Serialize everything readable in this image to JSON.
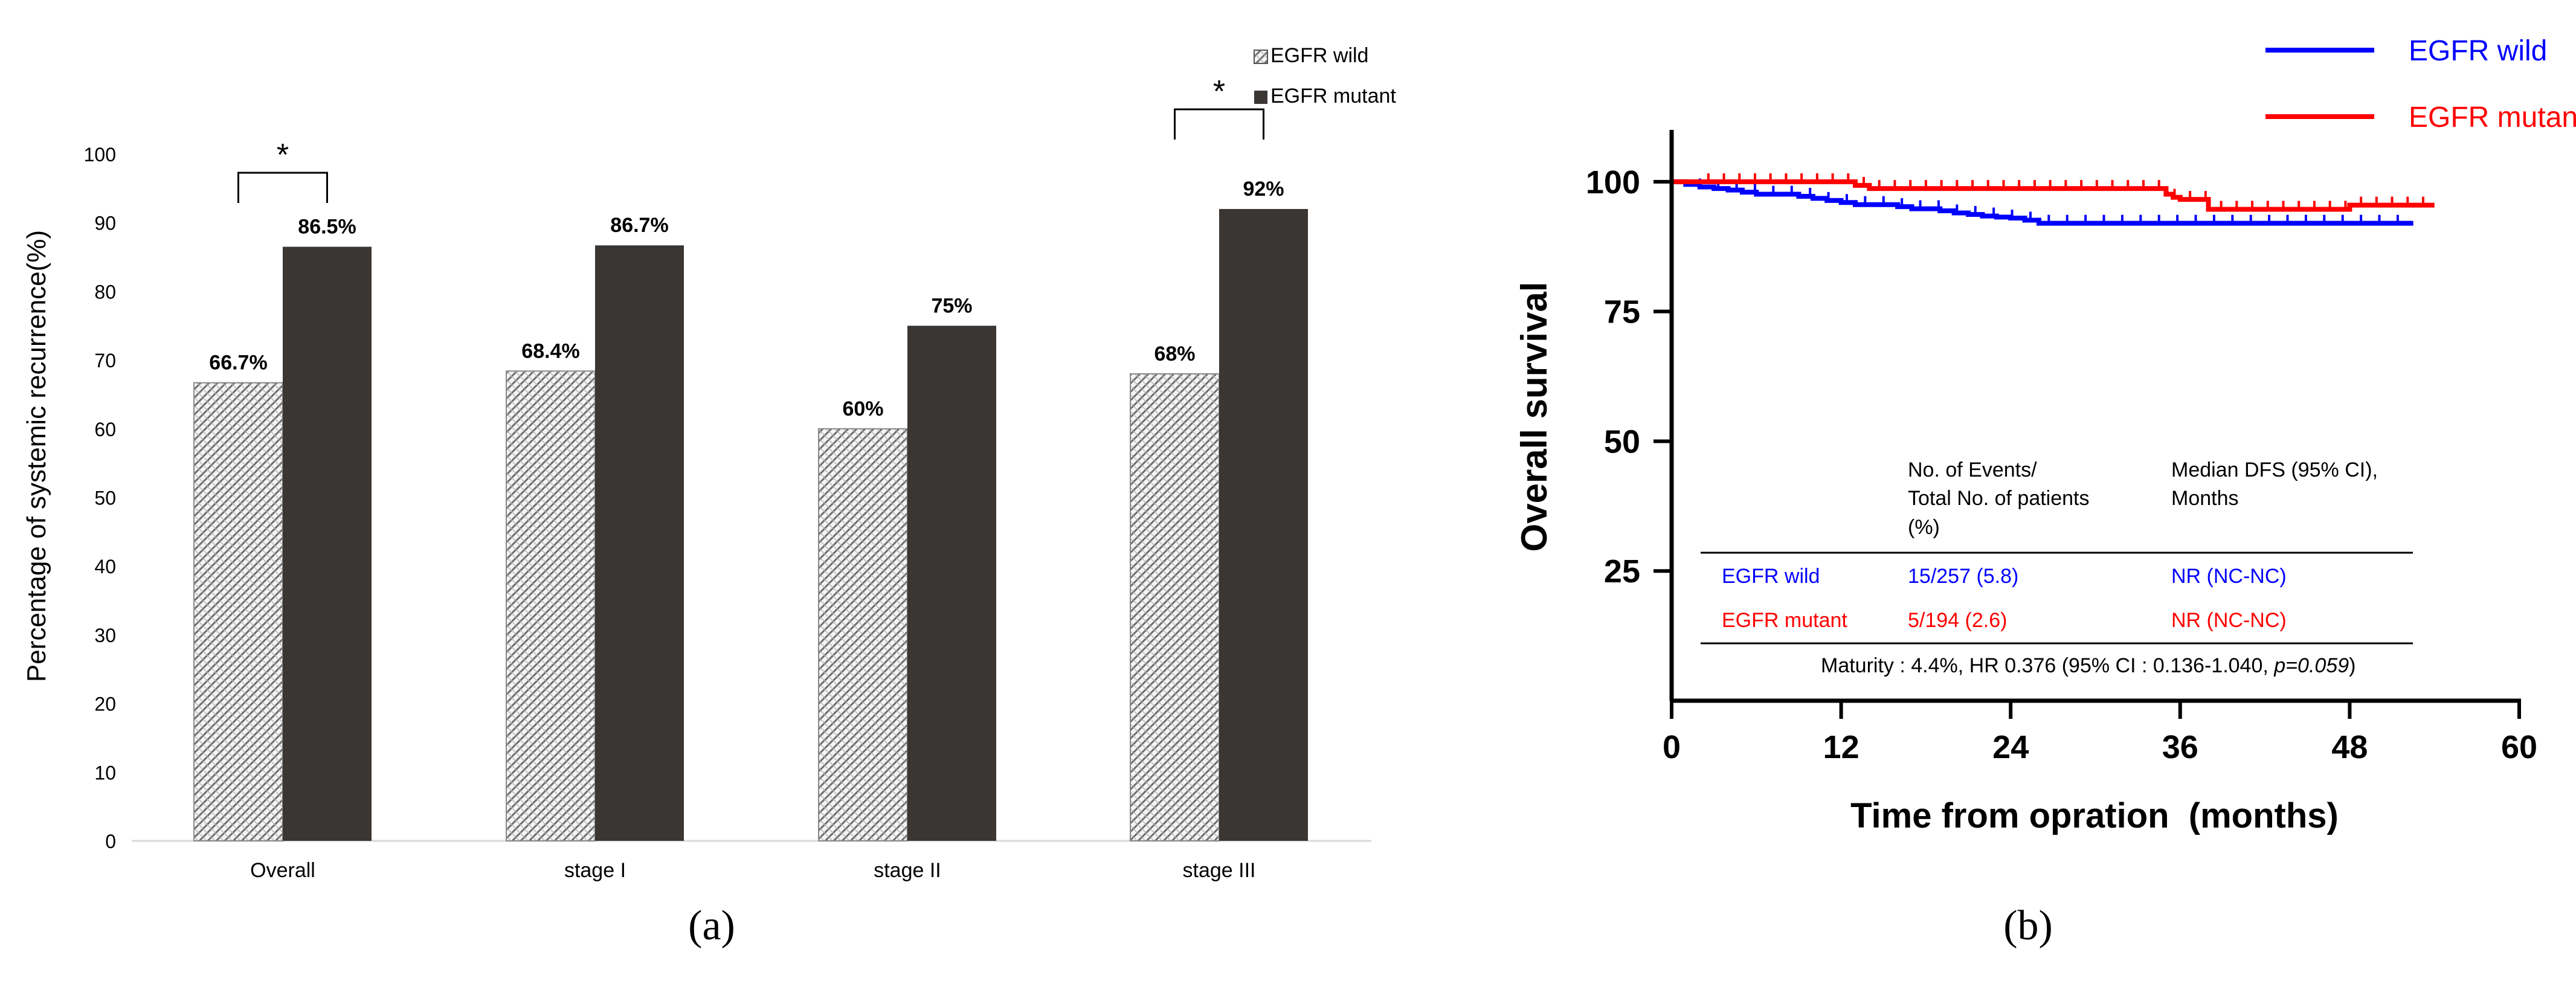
{
  "chart_data": [
    {
      "type": "bar",
      "title": "",
      "xlabel": "",
      "ylabel": "Percentage of systemic recurrence(%)",
      "ylim": [
        0,
        100
      ],
      "yticks": [
        0,
        10,
        20,
        30,
        40,
        50,
        60,
        70,
        80,
        90,
        100
      ],
      "categories": [
        "Overall",
        "stage I",
        "stage II",
        "stage III"
      ],
      "series": [
        {
          "name": "EGFR wild",
          "values": [
            66.7,
            68.4,
            60,
            68
          ],
          "labels": [
            "66.7%",
            "68.4%",
            "60%",
            "68%"
          ],
          "pattern": "hatched"
        },
        {
          "name": "EGFR mutant",
          "values": [
            86.5,
            86.7,
            75,
            92
          ],
          "labels": [
            "86.5%",
            "86.7%",
            "75%",
            "92%"
          ],
          "color": "#3a3634"
        }
      ],
      "legend": [
        "EGFR wild",
        "EGFR mutant"
      ],
      "legend_position": "top-right",
      "significance": [
        {
          "category": "Overall",
          "marker": "*"
        },
        {
          "category": "stage III",
          "marker": "*"
        }
      ],
      "panel_label": "(a)"
    },
    {
      "type": "line",
      "title": "",
      "xlabel": "Time from opration  (months)",
      "ylabel": "Overall survival",
      "xlim": [
        0,
        60
      ],
      "ylim": [
        0,
        110
      ],
      "xticks": [
        0,
        12,
        24,
        36,
        48,
        60
      ],
      "yticks": [
        25,
        50,
        75,
        100
      ],
      "series": [
        {
          "name": "EGFR wild",
          "color": "#0000ff",
          "x": [
            0,
            1,
            2,
            3,
            4,
            5,
            6,
            7,
            8,
            9,
            10,
            11,
            12,
            13,
            14,
            16,
            17,
            19,
            20,
            21,
            22,
            23,
            24,
            25,
            26,
            27,
            30,
            36,
            42,
            48,
            52.5
          ],
          "y": [
            100,
            99.5,
            99,
            98.7,
            98.4,
            98,
            97.6,
            97.6,
            97.6,
            97.2,
            96.8,
            96.4,
            96,
            95.6,
            95.6,
            95.2,
            94.8,
            94.4,
            94,
            93.7,
            93.4,
            93.2,
            93,
            92.6,
            92,
            92,
            92,
            92,
            92,
            92,
            92
          ]
        },
        {
          "name": "EGFR mutant",
          "color": "#ff0000",
          "x": [
            0,
            12,
            13,
            14,
            16,
            30,
            35,
            35.5,
            36,
            38,
            48,
            54
          ],
          "y": [
            100,
            100,
            99.3,
            98.7,
            98.7,
            98.7,
            97.6,
            97,
            96.6,
            94.7,
            95.5,
            95.5
          ]
        }
      ],
      "legend": [
        "EGFR wild",
        "EGFR mutant"
      ],
      "legend_position": "top-right",
      "table": {
        "headers": [
          "No. of Events/ Total No. of patients (%)",
          "Median DFS (95% CI), Months"
        ],
        "header_lines": [
          [
            "No. of Events/",
            "Total No. of patients",
            "(%)"
          ],
          [
            "Median DFS (95% CI),",
            "Months"
          ]
        ],
        "rows": [
          {
            "group": "EGFR wild",
            "events": "15/257 (5.8)",
            "median": "NR (NC-NC)",
            "color": "#0000ff"
          },
          {
            "group": "EGFR mutant",
            "events": "5/194 (2.6)",
            "median": "NR (NC-NC)",
            "color": "#ff0000"
          }
        ],
        "footnote_main": "Maturity : 4.4%, HR 0.376 (95% CI : 0.136-1.040, ",
        "footnote_p": "p=0.059",
        "footnote_end": ")"
      },
      "panel_label": "(b)"
    }
  ]
}
